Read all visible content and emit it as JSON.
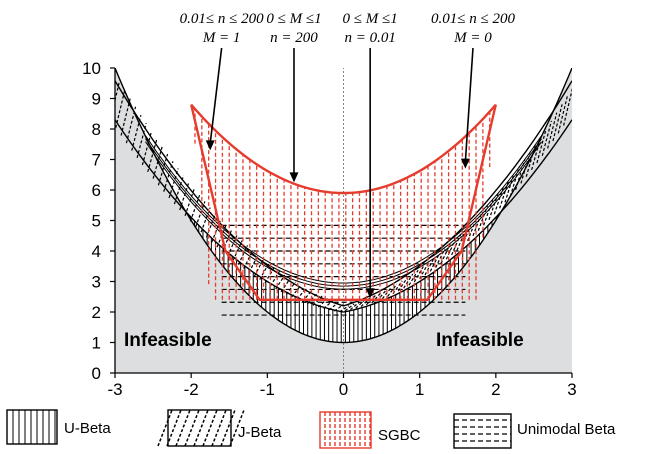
{
  "chart_data": {
    "type": "area",
    "title": "",
    "xlabel": "",
    "ylabel": "",
    "xlim": [
      -3,
      3
    ],
    "ylim": [
      0,
      10
    ],
    "x_ticks": [
      "-3",
      "-2",
      "-1",
      "0",
      "1",
      "2",
      "3"
    ],
    "y_ticks": [
      "0",
      "1",
      "2",
      "3",
      "4",
      "5",
      "6",
      "7",
      "8",
      "9",
      "10"
    ],
    "grid": false,
    "boundaries": {
      "outer_feasible_lower": {
        "description": "y = 1 + x^2",
        "x_range": [
          -3,
          3
        ]
      },
      "u_beta_band_upper": {
        "offset_at_zero": 2.0,
        "slope": 0.55,
        "x_range": [
          -3,
          3
        ]
      },
      "j_beta_band_upper": {
        "offset_at_zero": 2.2,
        "slope": 0.57,
        "x_range": [
          -3,
          3
        ]
      },
      "sgbc_lower": {
        "flat_value": 2.4,
        "x_range": [
          -2,
          2
        ]
      },
      "sgbc_upper": {
        "vertex": 5.9,
        "at_x_2": 8.8
      },
      "unimodal_curves": [
        {
          "offset": 2.75,
          "slope": 0.55
        },
        {
          "offset": 2.85,
          "slope": 0.55
        },
        {
          "offset": 2.95,
          "slope": 0.55
        }
      ]
    },
    "region_labels": [
      {
        "text": "Infeasible",
        "x": -1.9,
        "y": 1.15
      },
      {
        "text": "Infeasible",
        "x": 1.0,
        "y": 1.15
      }
    ],
    "annotations": [
      {
        "line1": "0.01≤ n ≤  200",
        "line2": "M = 1",
        "arrow_from": [
          -1.6,
          10.9
        ],
        "arrow_to": [
          -1.75,
          7.3
        ]
      },
      {
        "line1": "0 ≤ M  ≤1",
        "line2": "n = 200",
        "arrow_from": [
          -0.65,
          10.9
        ],
        "arrow_to": [
          -0.65,
          6.25
        ]
      },
      {
        "line1": "0 ≤ M  ≤1",
        "line2": "n = 0.01",
        "arrow_from": [
          0.35,
          10.9
        ],
        "arrow_to": [
          0.35,
          2.45
        ]
      },
      {
        "line1": "0.01≤ n ≤  200",
        "line2": "M = 0",
        "arrow_from": [
          1.7,
          10.9
        ],
        "arrow_to": [
          1.6,
          6.7
        ]
      }
    ],
    "legend": {
      "placement": "bottom",
      "items": [
        {
          "name": "U-Beta",
          "pattern": "vertical-solid",
          "color": "#000000"
        },
        {
          "name": "J-Beta",
          "pattern": "diagonal-dashed",
          "color": "#000000"
        },
        {
          "name": "SGBC",
          "pattern": "vertical-dashed",
          "color": "#e53c2e"
        },
        {
          "name": "Unimodal Beta",
          "pattern": "horizontal-dashed",
          "color": "#000000"
        }
      ]
    },
    "colors": {
      "infeasible": "#dcdedf",
      "sgbc": "#e53c2e",
      "lines": "#000000"
    }
  }
}
